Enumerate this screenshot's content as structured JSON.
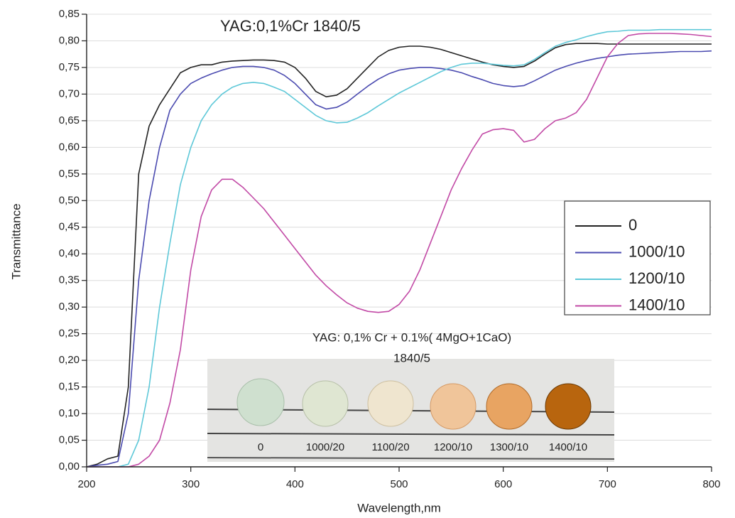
{
  "chart_data": {
    "type": "line",
    "title": "YAG:0,1%Cr 1840/5",
    "x_label": "Wavelength,nm",
    "y_label": "Transmittance",
    "x": [
      200,
      210,
      220,
      230,
      240,
      250,
      260,
      270,
      280,
      290,
      300,
      310,
      320,
      330,
      340,
      350,
      360,
      370,
      380,
      390,
      400,
      410,
      420,
      430,
      440,
      450,
      460,
      470,
      480,
      490,
      500,
      510,
      520,
      530,
      540,
      550,
      560,
      570,
      580,
      590,
      600,
      610,
      620,
      630,
      640,
      650,
      660,
      670,
      680,
      690,
      700,
      710,
      720,
      730,
      740,
      750,
      760,
      770,
      780,
      790,
      800
    ],
    "series": [
      {
        "name": "0",
        "color": "#222222",
        "values": [
          0,
          0.005,
          0.015,
          0.02,
          0.15,
          0.55,
          0.64,
          0.68,
          0.71,
          0.74,
          0.75,
          0.755,
          0.755,
          0.76,
          0.762,
          0.763,
          0.764,
          0.764,
          0.763,
          0.76,
          0.75,
          0.73,
          0.705,
          0.695,
          0.698,
          0.71,
          0.73,
          0.75,
          0.77,
          0.782,
          0.788,
          0.79,
          0.79,
          0.788,
          0.784,
          0.778,
          0.772,
          0.766,
          0.76,
          0.755,
          0.752,
          0.75,
          0.752,
          0.762,
          0.775,
          0.787,
          0.793,
          0.795,
          0.795,
          0.795,
          0.794,
          0.794,
          0.794,
          0.794,
          0.794,
          0.794,
          0.794,
          0.794,
          0.794,
          0.794,
          0.794
        ]
      },
      {
        "name": "1000/10",
        "color": "#4b4bb0",
        "values": [
          0,
          0.003,
          0.005,
          0.01,
          0.1,
          0.35,
          0.5,
          0.6,
          0.67,
          0.7,
          0.72,
          0.73,
          0.738,
          0.745,
          0.75,
          0.752,
          0.752,
          0.75,
          0.745,
          0.735,
          0.72,
          0.7,
          0.68,
          0.672,
          0.675,
          0.685,
          0.7,
          0.715,
          0.728,
          0.738,
          0.745,
          0.748,
          0.75,
          0.75,
          0.748,
          0.745,
          0.74,
          0.733,
          0.727,
          0.72,
          0.716,
          0.714,
          0.716,
          0.725,
          0.735,
          0.745,
          0.752,
          0.758,
          0.763,
          0.767,
          0.77,
          0.773,
          0.775,
          0.776,
          0.777,
          0.778,
          0.779,
          0.78,
          0.78,
          0.78,
          0.781
        ]
      },
      {
        "name": "1200/10",
        "color": "#5ec8d8",
        "values": [
          0,
          0,
          0,
          0,
          0.005,
          0.05,
          0.15,
          0.3,
          0.42,
          0.53,
          0.6,
          0.65,
          0.68,
          0.7,
          0.713,
          0.72,
          0.722,
          0.72,
          0.713,
          0.705,
          0.69,
          0.675,
          0.66,
          0.65,
          0.646,
          0.647,
          0.655,
          0.665,
          0.678,
          0.69,
          0.702,
          0.712,
          0.722,
          0.732,
          0.742,
          0.75,
          0.756,
          0.758,
          0.758,
          0.756,
          0.754,
          0.753,
          0.755,
          0.765,
          0.778,
          0.79,
          0.797,
          0.802,
          0.808,
          0.813,
          0.817,
          0.818,
          0.82,
          0.82,
          0.82,
          0.821,
          0.821,
          0.821,
          0.821,
          0.821,
          0.821
        ]
      },
      {
        "name": "1400/10",
        "color": "#c24aa6",
        "values": [
          0,
          0,
          0,
          0,
          0,
          0.005,
          0.02,
          0.05,
          0.12,
          0.22,
          0.37,
          0.47,
          0.52,
          0.54,
          0.54,
          0.525,
          0.505,
          0.485,
          0.46,
          0.435,
          0.41,
          0.385,
          0.36,
          0.34,
          0.323,
          0.308,
          0.298,
          0.292,
          0.29,
          0.292,
          0.305,
          0.33,
          0.37,
          0.42,
          0.47,
          0.52,
          0.56,
          0.595,
          0.625,
          0.633,
          0.635,
          0.632,
          0.61,
          0.615,
          0.635,
          0.65,
          0.655,
          0.665,
          0.69,
          0.73,
          0.77,
          0.795,
          0.81,
          0.813,
          0.814,
          0.814,
          0.814,
          0.813,
          0.812,
          0.81,
          0.808
        ]
      }
    ],
    "xlim": [
      200,
      800
    ],
    "xticks": [
      200,
      300,
      400,
      500,
      600,
      700,
      800
    ],
    "ylim": [
      0,
      0.85
    ],
    "yticks": [
      {
        "value": 0,
        "label": "0,00"
      },
      {
        "value": 0.05,
        "label": "0,05"
      },
      {
        "value": 0.1,
        "label": "0,10"
      },
      {
        "value": 0.15,
        "label": "0,15"
      },
      {
        "value": 0.2,
        "label": "0,20"
      },
      {
        "value": 0.25,
        "label": "0,25"
      },
      {
        "value": 0.3,
        "label": "0,30"
      },
      {
        "value": 0.35,
        "label": "0,35"
      },
      {
        "value": 0.4,
        "label": "0,40"
      },
      {
        "value": 0.45,
        "label": "0,45"
      },
      {
        "value": 0.5,
        "label": "0,50"
      },
      {
        "value": 0.55,
        "label": "0,55"
      },
      {
        "value": 0.6,
        "label": "0,60"
      },
      {
        "value": 0.65,
        "label": "0,65"
      },
      {
        "value": 0.7,
        "label": "0,70"
      },
      {
        "value": 0.75,
        "label": "0,75"
      },
      {
        "value": 0.8,
        "label": "0,80"
      },
      {
        "value": 0.85,
        "label": "0,85"
      }
    ],
    "grid": true,
    "legend": "right",
    "inset": {
      "title": "YAG: 0,1% Cr + 0.1%( 4MgO+1CaO)",
      "subtitle": "1840/5",
      "labels": [
        "0",
        "1000/20",
        "1100/20",
        "1200/10",
        "1300/10",
        "1400/10"
      ]
    }
  }
}
